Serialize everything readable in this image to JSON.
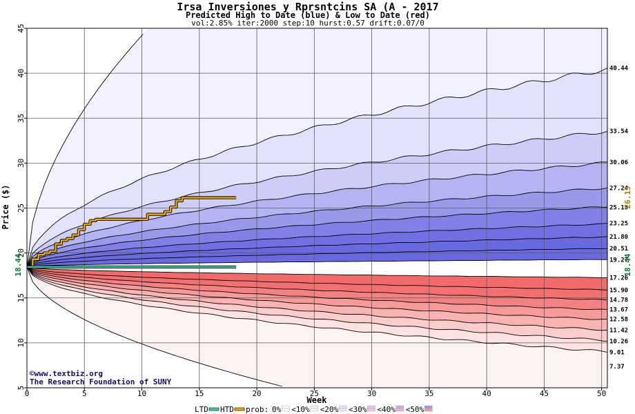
{
  "chart_data": {
    "type": "area",
    "title": "Irsa Inversiones y Rprsntcins SA (A - 2017",
    "subtitle": "Predicted High to Date (blue) &  Low to Date (red)",
    "params": "vol:2.85% iter:2000 step:10 hurst:0.57 drift:0.07/0",
    "xlabel": "Week",
    "ylabel": "Price ($)",
    "xlim": [
      0,
      50.5
    ],
    "ylim": [
      5,
      45
    ],
    "xticks": [
      0,
      5,
      10,
      15,
      20,
      25,
      30,
      35,
      40,
      45,
      50
    ],
    "yticks": [
      5,
      10,
      15,
      20,
      25,
      30,
      35,
      40,
      45
    ],
    "grid": true,
    "start_price": 18.44,
    "start_label": "18.44",
    "current_high": 26.15,
    "current_high_label": "26.15",
    "current_low": 18.44,
    "current_low_label": "18.44",
    "quantile_curves": [
      {
        "end": 7.37,
        "label": "7.37",
        "week10": 6.8,
        "week20": 5.9,
        "week25": 5.0
      },
      {
        "end": 9.01,
        "label": "9.01"
      },
      {
        "end": 10.26,
        "label": "10.26"
      },
      {
        "end": 11.42,
        "label": "11.42"
      },
      {
        "end": 12.58,
        "label": "12.58"
      },
      {
        "end": 13.67,
        "label": "13.67"
      },
      {
        "end": 14.78,
        "label": "14.78"
      },
      {
        "end": 15.9,
        "label": "15.90"
      },
      {
        "end": 17.26,
        "label": "17.26"
      },
      {
        "end": 19.27,
        "label": "19.27"
      },
      {
        "end": 20.51,
        "label": "20.51"
      },
      {
        "end": 21.8,
        "label": "21.80"
      },
      {
        "end": 23.25,
        "label": "23.25"
      },
      {
        "end": 25.15,
        "label": "25.15"
      },
      {
        "end": 27.24,
        "label": "27.24"
      },
      {
        "end": 30.06,
        "label": "30.06"
      },
      {
        "end": 33.54,
        "label": "33.54"
      },
      {
        "end": 40.44,
        "label": "40.44"
      },
      {
        "end": 45.0,
        "label": "",
        "week10": 44.2,
        "week11": 45.0
      }
    ],
    "series": [
      {
        "name": "HTD",
        "color": "#e8a800",
        "x": [
          0,
          0.5,
          1,
          1.5,
          2,
          2.5,
          3,
          3.5,
          4,
          4.5,
          5,
          5.5,
          6,
          7,
          8,
          9,
          10,
          10.5,
          11,
          11.5,
          12,
          12.5,
          13,
          13.5,
          14,
          15,
          16,
          17,
          18.2
        ],
        "values": [
          18.44,
          19.3,
          19.8,
          20.0,
          20.2,
          21.0,
          21.4,
          21.6,
          22.0,
          22.6,
          23.2,
          23.6,
          23.75,
          23.75,
          23.75,
          23.75,
          23.75,
          24.3,
          24.3,
          24.3,
          24.6,
          25.1,
          25.8,
          26.15,
          26.15,
          26.15,
          26.15,
          26.15,
          26.15
        ]
      },
      {
        "name": "LTD",
        "color": "#3cd0a8",
        "x": [
          0,
          1,
          5,
          10,
          15,
          18.2
        ],
        "values": [
          18.44,
          18.44,
          18.44,
          18.44,
          18.44,
          18.44
        ]
      }
    ],
    "band_colors": {
      "blue": [
        "#f2f2ff",
        "#e2e2fc",
        "#cdcdf7",
        "#b4b4f2",
        "#9999ec",
        "#8080e6",
        "#7070e2",
        "#6a6ae0"
      ],
      "red": [
        "#fdf2f2",
        "#fde2e2",
        "#fbcccc",
        "#f9b3b3",
        "#f79a9a",
        "#f58282",
        "#f37070",
        "#f26a6a"
      ]
    },
    "legend": {
      "ltd": "LTD",
      "htd": "HTD",
      "prob_prefix": "prob:",
      "items": [
        "0%",
        "<10%",
        "<20%",
        "<30%",
        "<40%",
        "<50%"
      ],
      "ltd_color": "#3cd0a8",
      "htd_color": "#e8a800"
    },
    "credit": {
      "copyright_symbol": "©",
      "line1": "www.textbiz.org",
      "line2": "The Research Foundation of SUNY"
    }
  }
}
